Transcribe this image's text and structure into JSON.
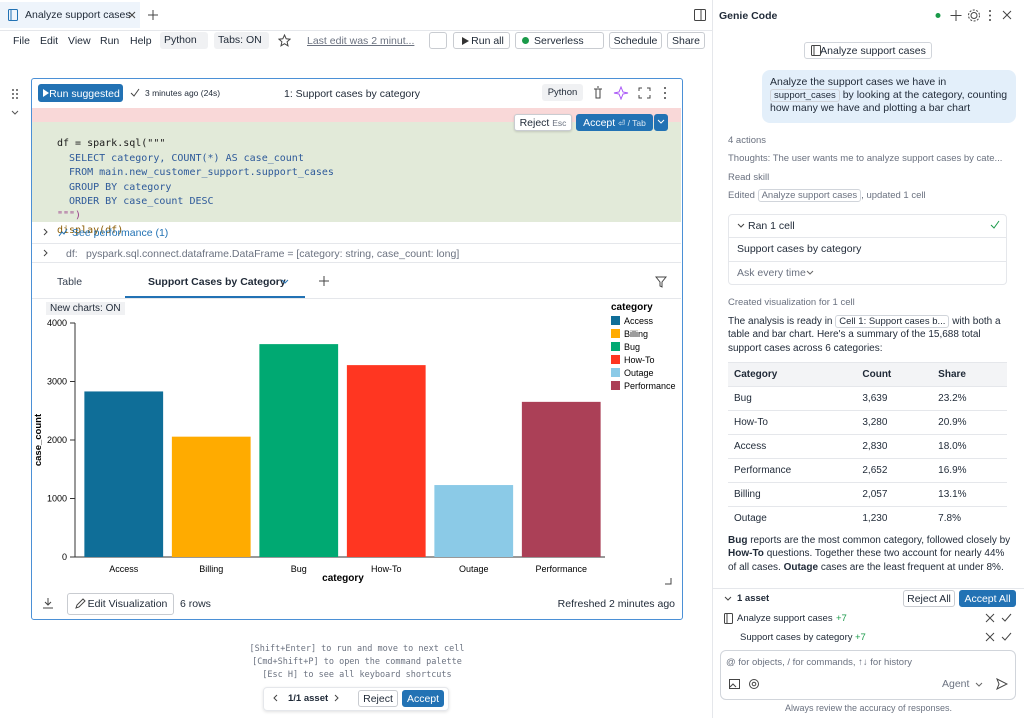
{
  "tab": {
    "title": "Analyze support cases"
  },
  "menu": [
    "File",
    "Edit",
    "View",
    "Run",
    "Help"
  ],
  "toolbar": {
    "language": "Python",
    "tabs": "Tabs: ON",
    "last_edit": "Last edit was 2 minut...",
    "run_all": "Run all",
    "compute": "Serverless",
    "schedule": "Schedule",
    "share": "Share"
  },
  "cell": {
    "run_button": "Run suggested",
    "timestamp": "3 minutes ago (24s)",
    "title": "1: Support cases by category",
    "language": "Python",
    "reject": "Reject",
    "reject_key": "Esc",
    "accept": "Accept",
    "accept_key": "⏎ / Tab",
    "code": [
      "df = spark.sql(\"\"\"",
      "  SELECT category, COUNT(*) AS case_count",
      "  FROM main.new_customer_support.support_cases",
      "  GROUP BY category",
      "  ORDER BY case_count DESC",
      "\"\"\")",
      "display(df)"
    ],
    "performance": "See performance (1)",
    "df_name": "df:",
    "df_schema": "pyspark.sql.connect.dataframe.DataFrame = [category: string, case_count: long]",
    "tabs": [
      "Table",
      "Support Cases by Category"
    ],
    "new_charts": "New charts: ON",
    "edit_visualization": "Edit Visualization",
    "row_count": "6 rows",
    "refreshed": "Refreshed 2 minutes ago"
  },
  "chart_data": {
    "type": "bar",
    "categories": [
      "Access",
      "Billing",
      "Bug",
      "How-To",
      "Outage",
      "Performance"
    ],
    "values": [
      2830,
      2057,
      3639,
      3280,
      1230,
      2652
    ],
    "colors": [
      "#0f6e98",
      "#ffab00",
      "#00a972",
      "#ff3621",
      "#8bcae7",
      "#ab4057"
    ],
    "xlabel": "category",
    "ylabel": "case_count",
    "legend_title": "category",
    "ylim": [
      0,
      4000
    ],
    "yticks": [
      0,
      1000,
      2000,
      3000,
      4000
    ],
    "grid": false
  },
  "hints": [
    "[Shift+Enter] to run and move to next cell",
    "[Cmd+Shift+P] to open the command palette",
    "[Esc H] to see all keyboard shortcuts"
  ],
  "review_bar": {
    "count": "1/1 asset",
    "reject": "Reject",
    "accept": "Accept"
  },
  "assistant": {
    "title": "Genie Code",
    "context": "Analyze support cases",
    "user_message": [
      "Analyze the support cases we have in",
      "support_cases",
      "by looking at the category, counting how many we have and plotting a bar chart"
    ],
    "actions": "4 actions",
    "thoughts": "Thoughts: The user wants me to analyze support cases by cate...",
    "read_skill": "Read skill",
    "edited": [
      "Edited",
      "Analyze support cases",
      ", updated 1 cell"
    ],
    "run_box": {
      "title": "Ran 1 cell",
      "cell": "Support cases by category",
      "permission": "Ask every time"
    },
    "created": "Created visualization for 1 cell",
    "answer": [
      "The analysis is ready in",
      "Cell 1: Support cases b...",
      "with both a table and bar chart. Here's a summary of the 15,688 total support cases across 6 categories:"
    ],
    "table": {
      "header": [
        "Category",
        "Count",
        "Share"
      ],
      "rows": [
        [
          "Bug",
          "3,639",
          "23.2%"
        ],
        [
          "How-To",
          "3,280",
          "20.9%"
        ],
        [
          "Access",
          "2,830",
          "18.0%"
        ],
        [
          "Performance",
          "2,652",
          "16.9%"
        ],
        [
          "Billing",
          "2,057",
          "13.1%"
        ],
        [
          "Outage",
          "1,230",
          "7.8%"
        ]
      ]
    },
    "summary": [
      "Bug",
      " reports are the most common category, followed closely by ",
      "How-To",
      " questions. Together these two account for nearly 44% of all cases. ",
      "Outage",
      " cases are the least frequent at under 8%."
    ],
    "assets": {
      "count": "1 asset",
      "reject_all": "Reject All",
      "accept_all": "Accept All",
      "items": [
        {
          "name": "Analyze support cases",
          "changes": "+7"
        },
        {
          "name": "Support cases by category",
          "changes": "+7"
        }
      ]
    },
    "input_placeholder": "@ for objects, / for commands, ↑↓ for history",
    "mode": "Agent",
    "disclaimer": "Always review the accuracy of responses."
  }
}
